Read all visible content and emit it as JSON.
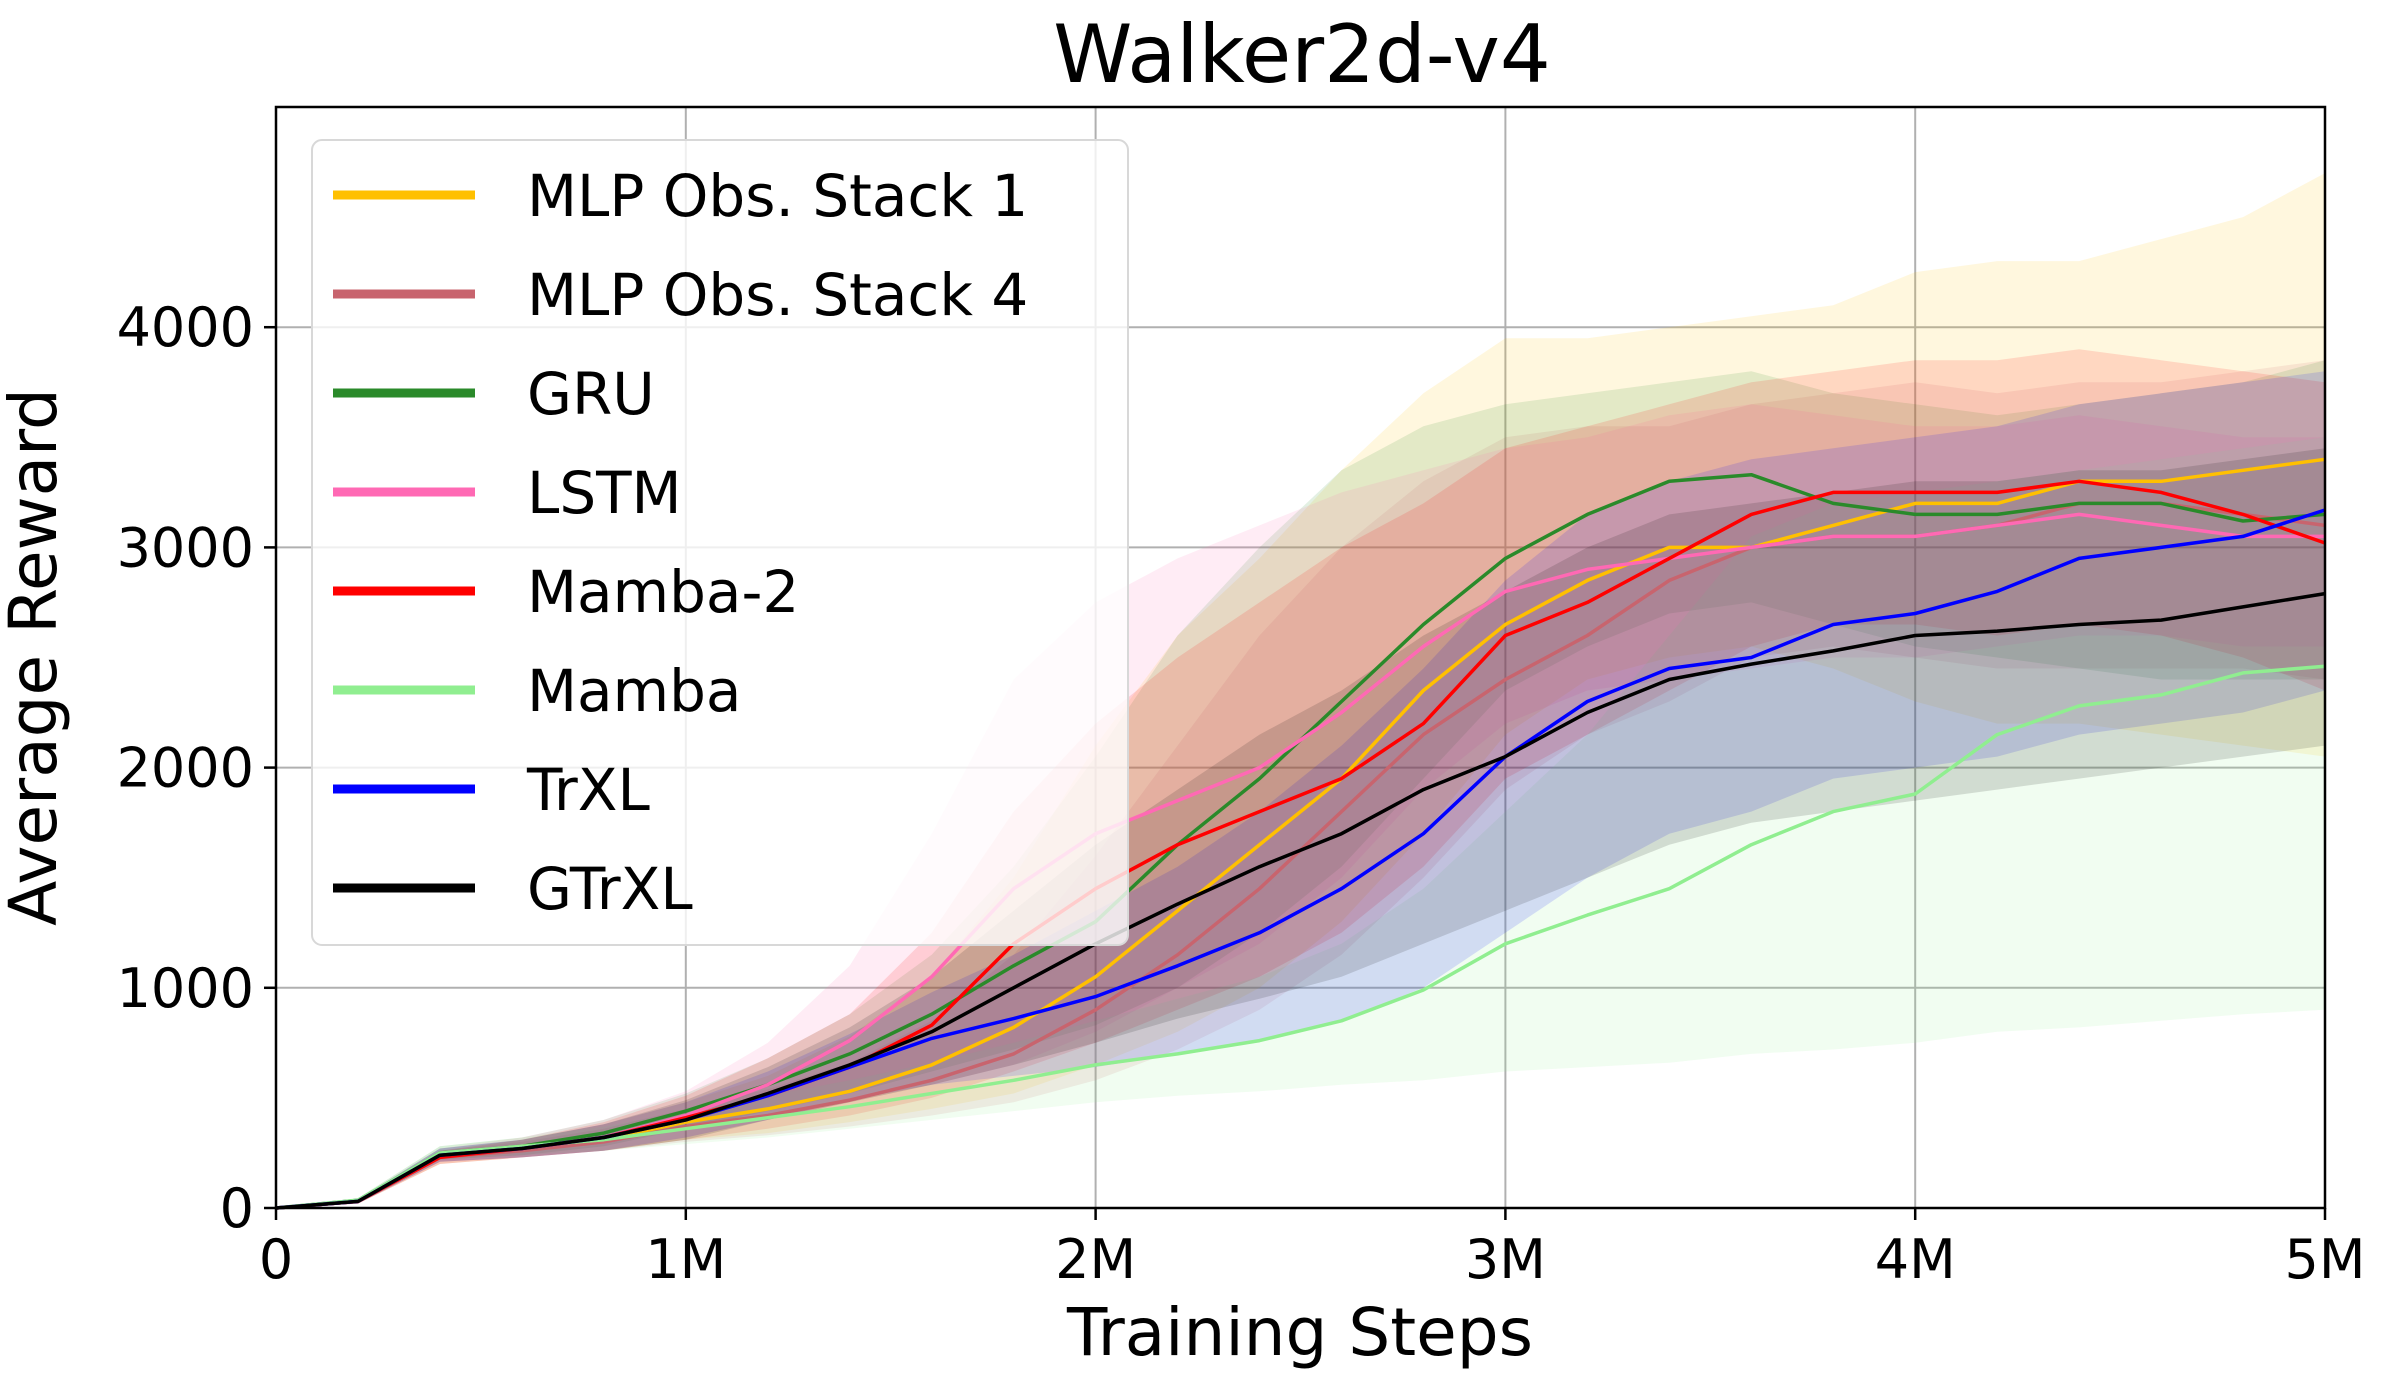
{
  "chart_data": {
    "type": "line",
    "title": "Walker2d-v4",
    "xlabel": "Training Steps",
    "ylabel": "Average Reward",
    "xlim": [
      0,
      5000000
    ],
    "ylim": [
      0,
      5000
    ],
    "xticks": [
      {
        "value": 0,
        "label": "0"
      },
      {
        "value": 1000000,
        "label": "1M"
      },
      {
        "value": 2000000,
        "label": "2M"
      },
      {
        "value": 3000000,
        "label": "3M"
      },
      {
        "value": 4000000,
        "label": "4M"
      },
      {
        "value": 5000000,
        "label": "5M"
      }
    ],
    "yticks": [
      {
        "value": 0,
        "label": "0"
      },
      {
        "value": 1000,
        "label": "1000"
      },
      {
        "value": 2000,
        "label": "2000"
      },
      {
        "value": 3000,
        "label": "3000"
      },
      {
        "value": 4000,
        "label": "4000"
      }
    ],
    "grid": true,
    "legend_position": "upper-left",
    "x": [
      0,
      200000,
      400000,
      600000,
      800000,
      1000000,
      1200000,
      1400000,
      1600000,
      1800000,
      2000000,
      2200000,
      2400000,
      2600000,
      2800000,
      3000000,
      3200000,
      3400000,
      3600000,
      3800000,
      4000000,
      4200000,
      4400000,
      4600000,
      4800000,
      5000000
    ],
    "series": [
      {
        "name": "MLP Obs. Stack 1",
        "color": "#FFC000",
        "values": [
          0,
          30,
          230,
          270,
          310,
          390,
          450,
          530,
          650,
          820,
          1050,
          1350,
          1650,
          1950,
          2350,
          2650,
          2850,
          3000,
          3000,
          3100,
          3200,
          3200,
          3300,
          3300,
          3350,
          3400
        ],
        "upper": [
          0,
          40,
          260,
          310,
          380,
          480,
          600,
          780,
          1050,
          1500,
          2100,
          2600,
          2950,
          3350,
          3700,
          3950,
          3950,
          4000,
          4050,
          4100,
          4250,
          4300,
          4300,
          4400,
          4500,
          4700
        ],
        "lower": [
          0,
          20,
          200,
          230,
          260,
          310,
          340,
          390,
          450,
          520,
          650,
          800,
          1000,
          1300,
          1700,
          2150,
          2400,
          2500,
          2550,
          2450,
          2300,
          2200,
          2200,
          2150,
          2100,
          2050
        ]
      },
      {
        "name": "MLP Obs. Stack 4",
        "color": "#C8646E",
        "values": [
          0,
          30,
          230,
          260,
          300,
          370,
          420,
          490,
          580,
          700,
          900,
          1150,
          1450,
          1800,
          2150,
          2400,
          2600,
          2850,
          3000,
          3050,
          3050,
          3100,
          3200,
          3200,
          3150,
          3100
        ],
        "upper": [
          0,
          40,
          260,
          300,
          360,
          450,
          540,
          660,
          850,
          1150,
          1600,
          2100,
          2600,
          3000,
          3300,
          3500,
          3550,
          3550,
          3650,
          3700,
          3750,
          3700,
          3750,
          3750,
          3800,
          3850
        ],
        "lower": [
          0,
          20,
          200,
          230,
          260,
          300,
          330,
          370,
          420,
          480,
          580,
          720,
          900,
          1150,
          1500,
          1900,
          2150,
          2300,
          2500,
          2550,
          2500,
          2450,
          2450,
          2450,
          2450,
          2400
        ]
      },
      {
        "name": "GRU",
        "color": "#2A8A2A",
        "values": [
          0,
          35,
          250,
          280,
          340,
          440,
          560,
          700,
          880,
          1100,
          1300,
          1650,
          1950,
          2300,
          2650,
          2950,
          3150,
          3300,
          3330,
          3200,
          3150,
          3150,
          3200,
          3200,
          3120,
          3150
        ],
        "upper": [
          0,
          45,
          280,
          320,
          400,
          520,
          680,
          880,
          1150,
          1550,
          2050,
          2600,
          3000,
          3350,
          3550,
          3650,
          3700,
          3750,
          3800,
          3700,
          3650,
          3600,
          3650,
          3700,
          3750,
          3850
        ],
        "lower": [
          0,
          25,
          220,
          240,
          280,
          360,
          440,
          520,
          620,
          720,
          830,
          1000,
          1250,
          1550,
          1950,
          2350,
          2550,
          2700,
          2750,
          2650,
          2550,
          2500,
          2450,
          2400,
          2400,
          2400
        ]
      },
      {
        "name": "LSTM",
        "color": "#FF69B4",
        "values": [
          0,
          30,
          240,
          270,
          320,
          420,
          560,
          760,
          1050,
          1450,
          1700,
          1850,
          2000,
          2250,
          2550,
          2800,
          2900,
          2950,
          3000,
          3050,
          3050,
          3100,
          3150,
          3100,
          3050,
          3050
        ],
        "upper": [
          0,
          40,
          270,
          320,
          400,
          530,
          750,
          1100,
          1700,
          2400,
          2750,
          2950,
          3100,
          3250,
          3350,
          3450,
          3500,
          3600,
          3650,
          3600,
          3550,
          3550,
          3600,
          3550,
          3500,
          3500
        ],
        "lower": [
          0,
          20,
          210,
          230,
          260,
          320,
          400,
          480,
          560,
          650,
          800,
          1000,
          1200,
          1500,
          1900,
          2200,
          2350,
          2400,
          2450,
          2500,
          2500,
          2550,
          2600,
          2600,
          2550,
          2550
        ]
      },
      {
        "name": "Mamba-2",
        "color": "#FF0000",
        "values": [
          0,
          30,
          230,
          270,
          320,
          410,
          510,
          640,
          830,
          1200,
          1450,
          1650,
          1800,
          1950,
          2200,
          2600,
          2750,
          2950,
          3150,
          3250,
          3250,
          3250,
          3300,
          3250,
          3150,
          3020
        ],
        "upper": [
          0,
          40,
          260,
          310,
          390,
          510,
          680,
          880,
          1250,
          1800,
          2200,
          2500,
          2750,
          3000,
          3200,
          3450,
          3550,
          3650,
          3750,
          3800,
          3850,
          3850,
          3900,
          3850,
          3800,
          3750
        ],
        "lower": [
          0,
          20,
          200,
          230,
          260,
          310,
          360,
          420,
          500,
          620,
          750,
          900,
          1050,
          1250,
          1550,
          1950,
          2150,
          2350,
          2550,
          2650,
          2650,
          2600,
          2650,
          2600,
          2500,
          2350
        ]
      },
      {
        "name": "Mamba",
        "color": "#90EE90",
        "values": [
          0,
          35,
          250,
          280,
          310,
          360,
          410,
          460,
          520,
          580,
          650,
          700,
          760,
          850,
          990,
          1200,
          1330,
          1450,
          1650,
          1800,
          1880,
          2150,
          2280,
          2330,
          2430,
          2460
        ],
        "upper": [
          0,
          45,
          280,
          320,
          370,
          440,
          510,
          580,
          660,
          750,
          850,
          950,
          1050,
          1200,
          1450,
          1800,
          2150,
          2600,
          3050,
          3200,
          3250,
          3300,
          3350,
          3400,
          3450,
          3500
        ],
        "lower": [
          0,
          25,
          220,
          240,
          260,
          290,
          320,
          360,
          400,
          440,
          480,
          510,
          530,
          560,
          580,
          620,
          640,
          660,
          700,
          720,
          750,
          800,
          820,
          850,
          880,
          900
        ]
      },
      {
        "name": "TrXL",
        "color": "#0000FF",
        "values": [
          0,
          30,
          240,
          270,
          320,
          400,
          510,
          640,
          770,
          860,
          960,
          1100,
          1250,
          1450,
          1700,
          2050,
          2300,
          2450,
          2500,
          2650,
          2700,
          2800,
          2950,
          3000,
          3050,
          3170
        ],
        "upper": [
          0,
          40,
          270,
          310,
          380,
          480,
          620,
          790,
          980,
          1150,
          1350,
          1550,
          1800,
          2100,
          2450,
          2850,
          3150,
          3300,
          3400,
          3450,
          3500,
          3550,
          3650,
          3700,
          3750,
          3800
        ],
        "lower": [
          0,
          20,
          210,
          230,
          260,
          320,
          400,
          490,
          560,
          600,
          640,
          700,
          760,
          850,
          1000,
          1250,
          1500,
          1700,
          1800,
          1950,
          2000,
          2050,
          2150,
          2200,
          2250,
          2350
        ]
      },
      {
        "name": "GTrXL",
        "color": "#000000",
        "values": [
          0,
          30,
          240,
          270,
          320,
          400,
          520,
          650,
          800,
          1000,
          1200,
          1380,
          1550,
          1700,
          1900,
          2050,
          2250,
          2400,
          2470,
          2530,
          2600,
          2620,
          2650,
          2670,
          2730,
          2790
        ],
        "upper": [
          0,
          40,
          270,
          310,
          380,
          490,
          640,
          820,
          1050,
          1350,
          1650,
          1900,
          2150,
          2350,
          2600,
          2800,
          3000,
          3150,
          3200,
          3250,
          3300,
          3300,
          3350,
          3350,
          3400,
          3450
        ],
        "lower": [
          0,
          20,
          210,
          230,
          260,
          310,
          400,
          480,
          560,
          650,
          750,
          860,
          950,
          1050,
          1200,
          1350,
          1500,
          1650,
          1750,
          1800,
          1850,
          1900,
          1950,
          2000,
          2050,
          2100
        ]
      }
    ]
  }
}
